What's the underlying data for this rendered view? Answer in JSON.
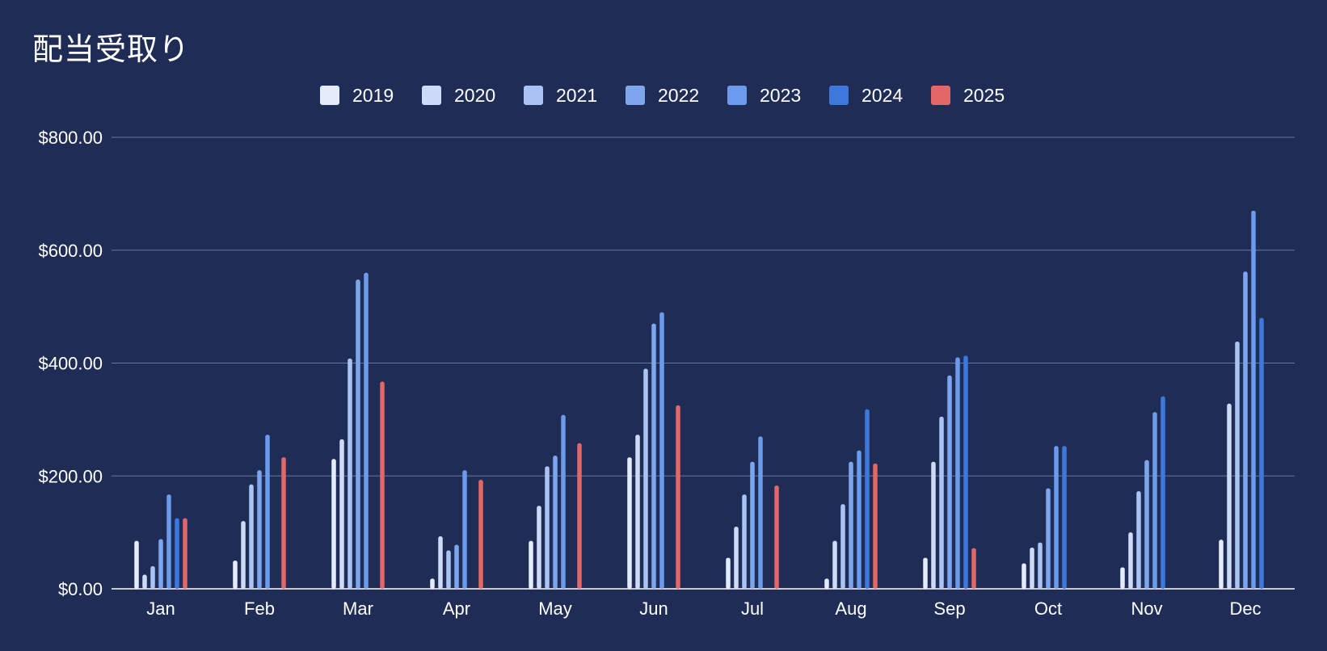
{
  "chart_data": {
    "type": "bar",
    "title": "配当受取り",
    "xlabel": "",
    "ylabel": "",
    "ylim": [
      0,
      800
    ],
    "yticks": [
      "$0.00",
      "$200.00",
      "$400.00",
      "$600.00",
      "$800.00"
    ],
    "grid": true,
    "legend_position": "top",
    "categories": [
      "Jan",
      "Feb",
      "Mar",
      "Apr",
      "May",
      "Jun",
      "Jul",
      "Aug",
      "Sep",
      "Oct",
      "Nov",
      "Dec"
    ],
    "series": [
      {
        "name": "2019",
        "color": "#e4ebfb",
        "values": [
          85,
          50,
          230,
          18,
          85,
          233,
          55,
          18,
          55,
          45,
          38,
          87
        ]
      },
      {
        "name": "2020",
        "color": "#cddbf8",
        "values": [
          25,
          120,
          265,
          93,
          147,
          273,
          110,
          85,
          225,
          73,
          100,
          328
        ]
      },
      {
        "name": "2021",
        "color": "#a9c3f4",
        "values": [
          40,
          185,
          408,
          68,
          217,
          390,
          167,
          150,
          305,
          82,
          173,
          438
        ]
      },
      {
        "name": "2022",
        "color": "#7ea6ee",
        "values": [
          88,
          210,
          548,
          78,
          236,
          470,
          225,
          225,
          378,
          178,
          228,
          562
        ]
      },
      {
        "name": "2023",
        "color": "#6c9bee",
        "values": [
          167,
          273,
          560,
          210,
          308,
          490,
          270,
          245,
          410,
          253,
          313,
          670
        ]
      },
      {
        "name": "2024",
        "color": "#3e78dc",
        "values": [
          125,
          0,
          0,
          0,
          0,
          0,
          0,
          318,
          413,
          253,
          341,
          480
        ]
      },
      {
        "name": "2025",
        "color": "#e46767",
        "values": [
          125,
          233,
          367,
          193,
          258,
          325,
          183,
          222,
          72,
          0,
          0,
          0
        ]
      }
    ]
  }
}
